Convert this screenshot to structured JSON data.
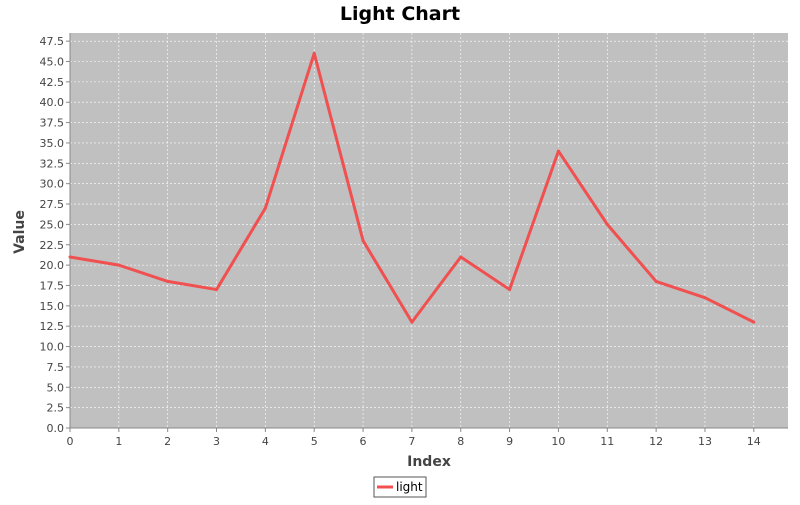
{
  "chart_data": {
    "type": "line",
    "title": "Light Chart",
    "xlabel": "Index",
    "ylabel": "Value",
    "x": [
      0,
      1,
      2,
      3,
      4,
      5,
      6,
      7,
      8,
      9,
      10,
      11,
      12,
      13,
      14
    ],
    "series": [
      {
        "name": "light",
        "values": [
          21,
          20,
          18,
          17,
          27,
          46,
          23,
          13,
          21,
          17,
          34,
          25,
          18,
          16,
          13
        ],
        "color": "#f05050"
      }
    ],
    "xlim": [
      0,
      14.7
    ],
    "ylim": [
      0,
      48.5
    ],
    "x_ticks": [
      "0",
      "1",
      "2",
      "3",
      "4",
      "5",
      "6",
      "7",
      "8",
      "9",
      "10",
      "11",
      "12",
      "13",
      "14"
    ],
    "y_ticks": [
      "0.0",
      "2.5",
      "5.0",
      "7.5",
      "10.0",
      "12.5",
      "15.0",
      "17.5",
      "20.0",
      "22.5",
      "25.0",
      "27.5",
      "30.0",
      "32.5",
      "35.0",
      "37.5",
      "40.0",
      "42.5",
      "45.0",
      "47.5"
    ],
    "grid": true,
    "legend_position": "bottom-center",
    "plot_background": "#c0c0c0",
    "grid_color": "#ffffff"
  }
}
